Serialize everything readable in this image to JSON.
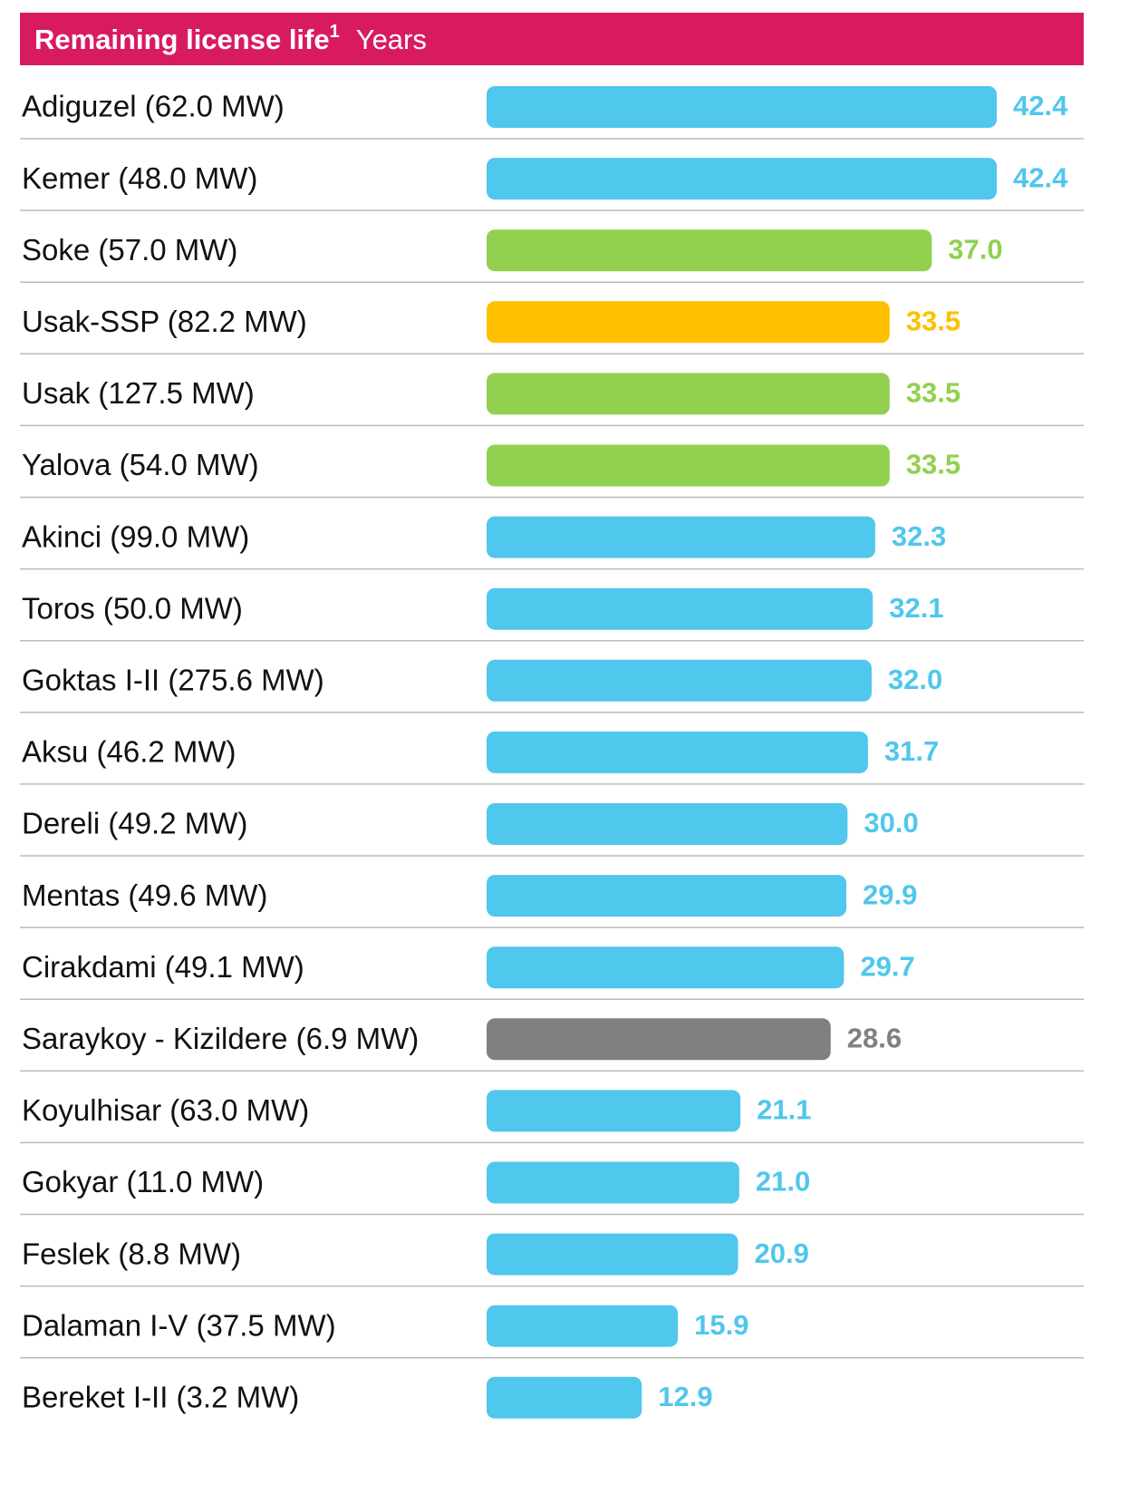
{
  "chart_data": {
    "type": "barh",
    "title": "Remaining license life",
    "title_note": "1",
    "subtitle": "Years",
    "categories": [
      "Adiguzel (62.0 MW)",
      "Kemer (48.0 MW)",
      "Soke (57.0 MW)",
      "Usak-SSP (82.2 MW)",
      "Usak (127.5 MW)",
      "Yalova (54.0 MW)",
      "Akinci (99.0 MW)",
      "Toros (50.0 MW)",
      "Goktas I-II (275.6 MW)",
      "Aksu (46.2 MW)",
      "Dereli (49.2 MW)",
      "Mentas (49.6 MW)",
      "Cirakdami (49.1 MW)",
      "Saraykoy - Kizildere (6.9 MW)",
      "Koyulhisar (63.0 MW)",
      "Gokyar (11.0 MW)",
      "Feslek (8.8 MW)",
      "Dalaman I-V (37.5 MW)",
      "Bereket I-II (3.2 MW)"
    ],
    "values": [
      42.4,
      42.4,
      37.0,
      33.5,
      33.5,
      33.5,
      32.3,
      32.1,
      32.0,
      31.7,
      30.0,
      29.9,
      29.7,
      28.6,
      21.1,
      21.0,
      20.9,
      15.9,
      12.9
    ],
    "value_labels": [
      "42.4",
      "42.4",
      "37.0",
      "33.5",
      "33.5",
      "33.5",
      "32.3",
      "32.1",
      "32.0",
      "31.7",
      "30.0",
      "29.9",
      "29.7",
      "28.6",
      "21.1",
      "21.0",
      "20.9",
      "15.9",
      "12.9"
    ],
    "colors": [
      "#50c7ec",
      "#50c7ec",
      "#92d050",
      "#ffc000",
      "#92d050",
      "#92d050",
      "#50c7ec",
      "#50c7ec",
      "#50c7ec",
      "#50c7ec",
      "#50c7ec",
      "#50c7ec",
      "#50c7ec",
      "#808080",
      "#50c7ec",
      "#50c7ec",
      "#50c7ec",
      "#50c7ec",
      "#50c7ec"
    ],
    "header_color": "#d81b60"
  }
}
